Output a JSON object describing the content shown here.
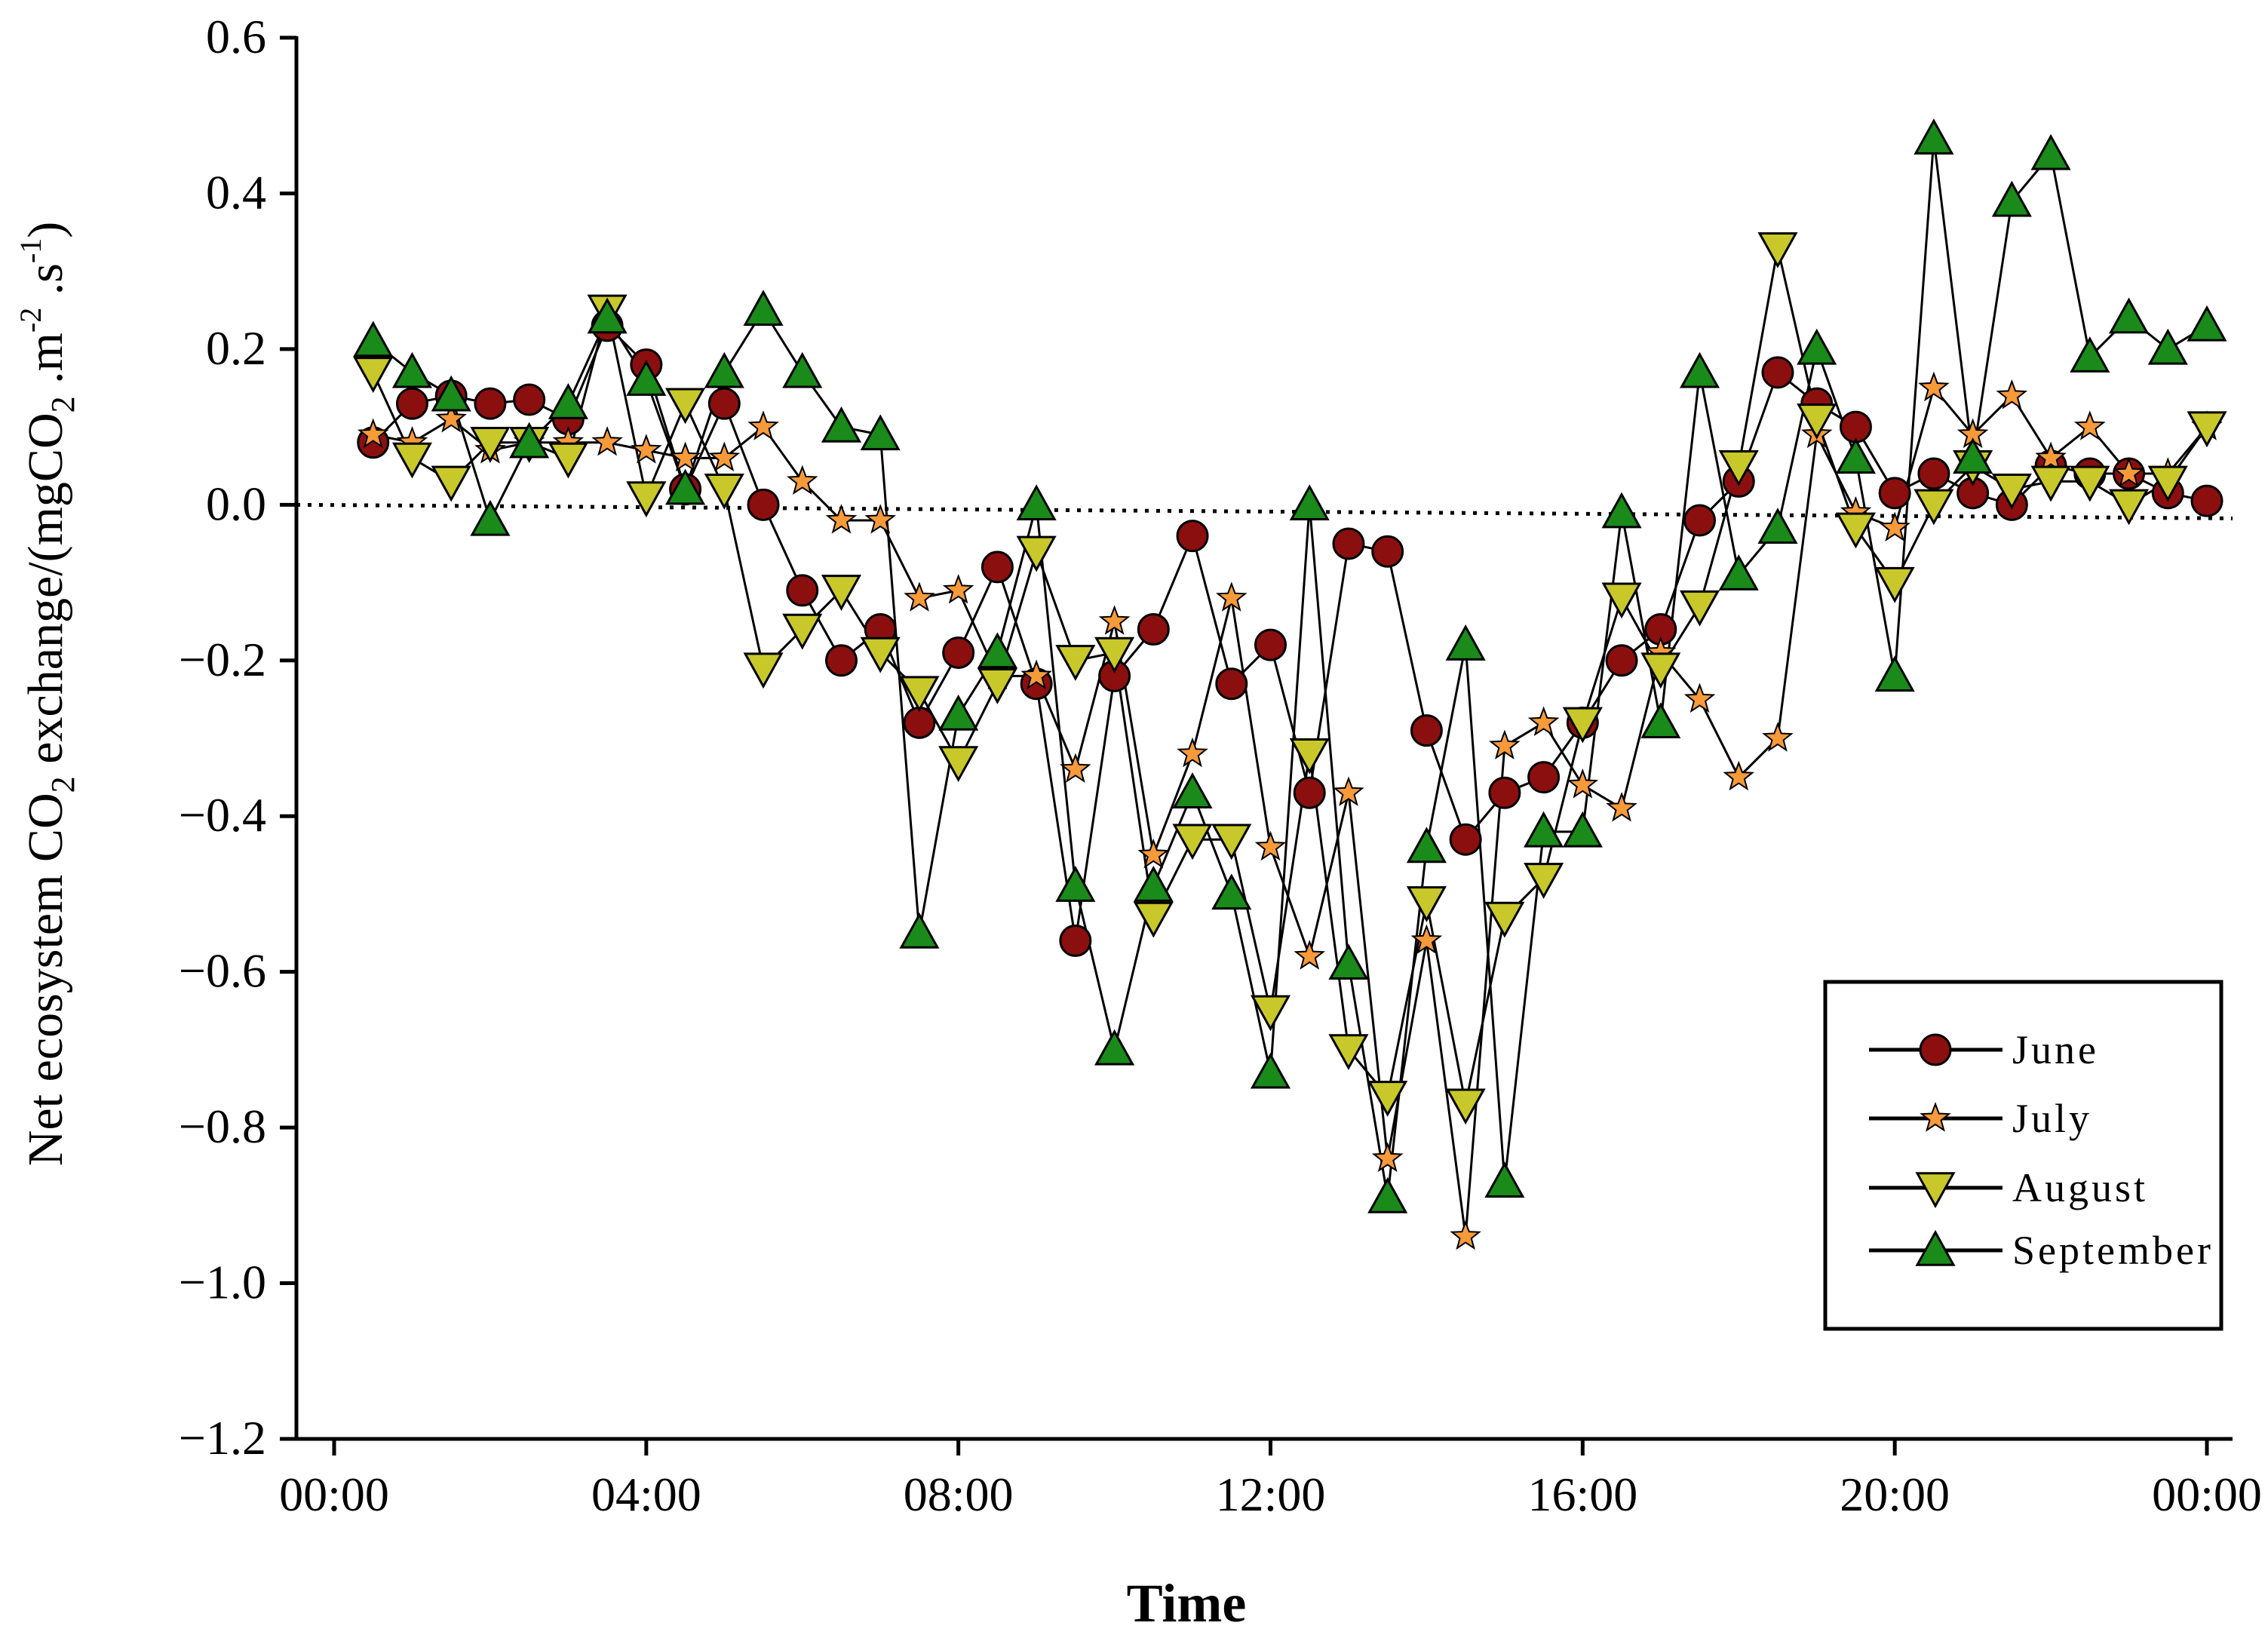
{
  "chart_data": {
    "type": "line",
    "title": "",
    "xlabel": "Time",
    "ylabel": {
      "parts": [
        "Net ecosystem CO",
        "2",
        " exchange/(mgCO",
        "2",
        " .m",
        "-2",
        " .s",
        "-1",
        ")"
      ]
    },
    "ylim": [
      -1.2,
      0.6
    ],
    "xlim": [
      0,
      24
    ],
    "y_ticks": [
      {
        "value": 0.6,
        "label": "0.6"
      },
      {
        "value": 0.4,
        "label": "0.4"
      },
      {
        "value": 0.2,
        "label": "0.2"
      },
      {
        "value": 0.0,
        "label": "0.0"
      },
      {
        "value": -0.2,
        "label": "−0.2"
      },
      {
        "value": -0.4,
        "label": "−0.4"
      },
      {
        "value": -0.6,
        "label": "−0.6"
      },
      {
        "value": -0.8,
        "label": "−0.8"
      },
      {
        "value": -1.0,
        "label": "−1.0"
      },
      {
        "value": -1.2,
        "label": "−1.2"
      }
    ],
    "x_ticks": [
      {
        "value": 0,
        "label": "00:00"
      },
      {
        "value": 4,
        "label": "04:00"
      },
      {
        "value": 8,
        "label": "08:00"
      },
      {
        "value": 12,
        "label": "12:00"
      },
      {
        "value": 16,
        "label": "16:00"
      },
      {
        "value": 20,
        "label": "20:00"
      },
      {
        "value": 24,
        "label": "00:00"
      }
    ],
    "reference_line": {
      "y": 0.0,
      "style": "dotted"
    },
    "legend": {
      "position": "bottom-right"
    },
    "x": [
      0.5,
      1,
      1.5,
      2,
      2.5,
      3,
      3.5,
      4,
      4.5,
      5,
      5.5,
      6,
      6.5,
      7,
      7.5,
      8,
      8.5,
      9,
      9.5,
      10,
      10.5,
      11,
      11.5,
      12,
      12.5,
      13,
      13.5,
      14,
      14.5,
      15,
      15.5,
      16,
      16.5,
      17,
      17.5,
      18,
      18.5,
      19,
      19.5,
      20,
      20.5,
      21,
      21.5,
      22,
      22.5,
      23,
      23.5,
      24
    ],
    "series": [
      {
        "name": "June",
        "marker": "circle",
        "color": "#8b0f0f",
        "values": [
          0.08,
          0.13,
          0.14,
          0.13,
          0.135,
          0.11,
          0.23,
          0.18,
          0.02,
          0.13,
          0.0,
          -0.11,
          -0.2,
          -0.16,
          -0.28,
          -0.19,
          -0.08,
          -0.23,
          -0.56,
          -0.22,
          -0.16,
          -0.04,
          -0.23,
          -0.18,
          -0.37,
          -0.05,
          -0.06,
          -0.29,
          -0.43,
          -0.37,
          -0.35,
          -0.28,
          -0.2,
          -0.16,
          -0.02,
          0.03,
          0.17,
          0.13,
          0.1,
          0.015,
          0.04,
          0.015,
          0.0,
          0.05,
          0.04,
          0.04,
          0.015,
          0.005
        ]
      },
      {
        "name": "July",
        "marker": "star",
        "color": "#f79a3a",
        "values": [
          0.09,
          0.08,
          0.11,
          0.07,
          0.08,
          0.08,
          0.08,
          0.07,
          0.06,
          0.06,
          0.1,
          0.03,
          -0.02,
          -0.02,
          -0.12,
          -0.11,
          -0.22,
          -0.22,
          -0.34,
          -0.15,
          -0.45,
          -0.32,
          -0.12,
          -0.44,
          -0.58,
          -0.37,
          -0.84,
          -0.56,
          -0.94,
          -0.31,
          -0.28,
          -0.36,
          -0.39,
          -0.19,
          -0.25,
          -0.35,
          -0.3,
          0.09,
          -0.01,
          -0.03,
          0.15,
          0.09,
          0.14,
          0.06,
          0.1,
          0.04,
          0.04,
          0.1
        ]
      },
      {
        "name": "August",
        "marker": "triangle-down",
        "color": "#c8c82a",
        "values": [
          0.17,
          0.06,
          0.03,
          0.08,
          0.08,
          0.06,
          0.25,
          0.01,
          0.13,
          0.02,
          -0.21,
          -0.16,
          -0.11,
          -0.19,
          -0.24,
          -0.33,
          -0.23,
          -0.06,
          -0.2,
          -0.19,
          -0.53,
          -0.43,
          -0.43,
          -0.65,
          -0.32,
          -0.7,
          -0.76,
          -0.51,
          -0.77,
          -0.53,
          -0.48,
          -0.28,
          -0.12,
          -0.21,
          -0.13,
          0.05,
          0.33,
          0.11,
          -0.03,
          -0.1,
          0.0,
          0.05,
          0.02,
          0.03,
          0.03,
          0.0,
          0.03,
          0.1
        ]
      },
      {
        "name": "September",
        "marker": "triangle-up",
        "color": "#1a8a1a",
        "values": [
          0.21,
          0.17,
          0.14,
          -0.02,
          0.08,
          0.13,
          0.24,
          0.16,
          0.02,
          0.17,
          0.25,
          0.17,
          0.1,
          0.09,
          -0.55,
          -0.27,
          -0.19,
          0.0,
          -0.49,
          -0.7,
          -0.49,
          -0.37,
          -0.5,
          -0.73,
          0.0,
          -0.59,
          -0.89,
          -0.44,
          -0.18,
          -0.87,
          -0.42,
          -0.42,
          -0.01,
          -0.28,
          0.17,
          -0.09,
          -0.03,
          0.2,
          0.06,
          -0.22,
          0.47,
          0.06,
          0.39,
          0.45,
          0.19,
          0.24,
          0.2,
          0.23
        ]
      }
    ]
  }
}
